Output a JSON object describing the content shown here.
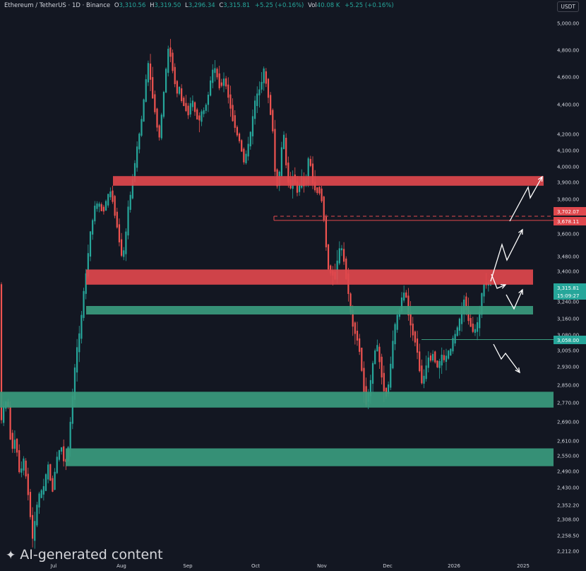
{
  "header": {
    "pair": "Ethereum / TetherUS",
    "interval": "1D",
    "exchange": "Binance",
    "open_label": "O",
    "open": "3,310.56",
    "high_label": "H",
    "high": "3,319.50",
    "low_label": "L",
    "low": "3,296.34",
    "close_label": "C",
    "close": "3,315.81",
    "change": "+5.25 (+0.16%)",
    "vol_label": "Vol",
    "vol": "40.08 K",
    "vol_change": "+5.25 (+0.16%)"
  },
  "currency": "USDT",
  "watermark": "AI-generated content",
  "colors": {
    "bg": "#131722",
    "up": "#26a69a",
    "down": "#ef5350",
    "red_zone": "#e0484d",
    "green_zone": "#3a9b7e",
    "axis_text": "#d1d4dc"
  },
  "chart_data": {
    "type": "candlestick",
    "title": "Ethereum / TetherUS · 1D · Binance",
    "x_ticks": [
      "Jul",
      "Aug",
      "Sep",
      "Oct",
      "Nov",
      "Dec",
      "2026",
      "2025"
    ],
    "y_ticks": [
      "5,000.00",
      "4,800.00",
      "4,600.00",
      "4,400.00",
      "4,200.00",
      "4,100.00",
      "4,000.00",
      "3,900.00",
      "3,800.00",
      "3,600.00",
      "3,480.00",
      "3,400.00",
      "3,240.00",
      "3,160.00",
      "3,080.00",
      "3,005.00",
      "2,930.00",
      "2,850.00",
      "2,770.00",
      "2,690.00",
      "2,610.00",
      "2,550.00",
      "2,490.00",
      "2,430.00",
      "2,352.20",
      "2,308.00",
      "2,258.50",
      "2,212.00"
    ],
    "price_labels": [
      {
        "value": "3,702.07",
        "kind": "red"
      },
      {
        "value": "3,678.11",
        "kind": "red"
      },
      {
        "value": "3,315.81",
        "kind": "green"
      },
      {
        "value": "15:09:27",
        "kind": "green"
      },
      {
        "value": "3,058.00",
        "kind": "green"
      }
    ],
    "zones": [
      {
        "type": "resistance",
        "color": "red",
        "from": 3880,
        "to": 3940
      },
      {
        "type": "resistance",
        "color": "red",
        "from": 3330,
        "to": 3410
      },
      {
        "type": "support",
        "color": "green",
        "from": 3180,
        "to": 3220
      },
      {
        "type": "support",
        "color": "green",
        "from": 2750,
        "to": 2820
      },
      {
        "type": "support",
        "color": "green",
        "from": 2510,
        "to": 2580
      }
    ],
    "lines": [
      {
        "value": 3702.07,
        "style": "dashed",
        "color": "red"
      },
      {
        "value": 3678.11,
        "style": "solid",
        "color": "red"
      },
      {
        "value": 3058.0,
        "style": "solid",
        "color": "green"
      }
    ],
    "grid": false
  }
}
